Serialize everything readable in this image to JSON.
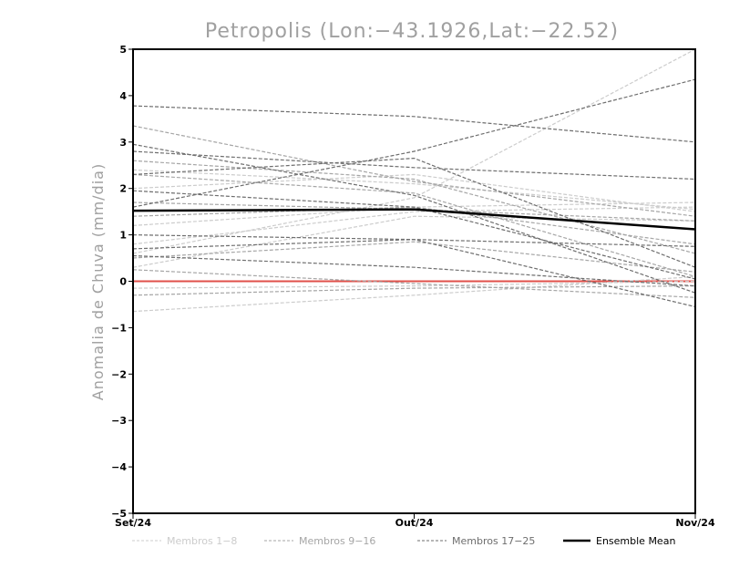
{
  "chart_data": {
    "type": "line",
    "title": "Petropolis (Lon:−43.1926,Lat:−22.52)",
    "ylabel": "Anomalia de Chuva (mm/dia)",
    "xlabel": "",
    "categories": [
      "Set/24",
      "Out/24",
      "Nov/24"
    ],
    "yticks": [
      "−5",
      "−4",
      "−3",
      "−2",
      "−1",
      "0",
      "1",
      "2",
      "3",
      "4",
      "5"
    ],
    "ylim": [
      -5,
      5
    ],
    "grid": false,
    "legend_position": "bottom",
    "colors": {
      "members_1_8": "#cccccc",
      "members_9_16": "#a6a6a6",
      "members_17_25": "#6e6e6e",
      "ensemble_mean": "#000000",
      "zero_line": "#e0504a",
      "title": "#a0a0a0"
    },
    "legend": [
      {
        "label": "Membros 1−8",
        "style": "dashed",
        "color": "#cccccc"
      },
      {
        "label": "Membros 9−16",
        "style": "dashed",
        "color": "#a6a6a6"
      },
      {
        "label": "Membros 17−25",
        "style": "dashed",
        "color": "#6e6e6e"
      },
      {
        "label": "Ensemble Mean",
        "style": "solid",
        "color": "#000000"
      }
    ],
    "series": [
      {
        "group": "1-8",
        "values": [
          -0.65,
          -0.3,
          0.1
        ]
      },
      {
        "group": "1-8",
        "values": [
          0.6,
          1.8,
          5.0
        ]
      },
      {
        "group": "1-8",
        "values": [
          1.2,
          1.6,
          1.7
        ]
      },
      {
        "group": "1-8",
        "values": [
          2.4,
          2.1,
          1.55
        ]
      },
      {
        "group": "1-8",
        "values": [
          0.8,
          1.5,
          1.6
        ]
      },
      {
        "group": "1-8",
        "values": [
          2.0,
          2.3,
          1.5
        ]
      },
      {
        "group": "1-8",
        "values": [
          0.3,
          1.4,
          1.3
        ]
      },
      {
        "group": "1-8",
        "values": [
          -0.15,
          -0.1,
          0.0
        ]
      },
      {
        "group": "9-16",
        "values": [
          3.35,
          2.15,
          1.4
        ]
      },
      {
        "group": "9-16",
        "values": [
          2.6,
          2.2,
          0.6
        ]
      },
      {
        "group": "9-16",
        "values": [
          1.4,
          1.6,
          0.8
        ]
      },
      {
        "group": "9-16",
        "values": [
          0.25,
          -0.05,
          -0.35
        ]
      },
      {
        "group": "9-16",
        "values": [
          -0.3,
          -0.15,
          -0.1
        ]
      },
      {
        "group": "9-16",
        "values": [
          1.7,
          1.55,
          1.3
        ]
      },
      {
        "group": "9-16",
        "values": [
          2.3,
          1.9,
          0.1
        ]
      },
      {
        "group": "9-16",
        "values": [
          0.5,
          0.85,
          0.2
        ]
      },
      {
        "group": "17-25",
        "values": [
          3.78,
          3.55,
          3.0
        ]
      },
      {
        "group": "17-25",
        "values": [
          2.95,
          1.85,
          -0.25
        ]
      },
      {
        "group": "17-25",
        "values": [
          2.3,
          2.65,
          0.3
        ]
      },
      {
        "group": "17-25",
        "values": [
          1.6,
          2.8,
          4.35
        ]
      },
      {
        "group": "17-25",
        "values": [
          0.7,
          0.9,
          0.75
        ]
      },
      {
        "group": "17-25",
        "values": [
          0.55,
          0.3,
          -0.1
        ]
      },
      {
        "group": "17-25",
        "values": [
          1.95,
          1.6,
          0.05
        ]
      },
      {
        "group": "17-25",
        "values": [
          2.8,
          2.45,
          2.2
        ]
      },
      {
        "group": "17-25",
        "values": [
          1.0,
          0.9,
          -0.55
        ]
      },
      {
        "group": "mean",
        "name": "Ensemble Mean",
        "values": [
          1.52,
          1.55,
          1.12
        ]
      },
      {
        "group": "zero",
        "values": [
          0,
          0,
          0
        ]
      }
    ]
  }
}
